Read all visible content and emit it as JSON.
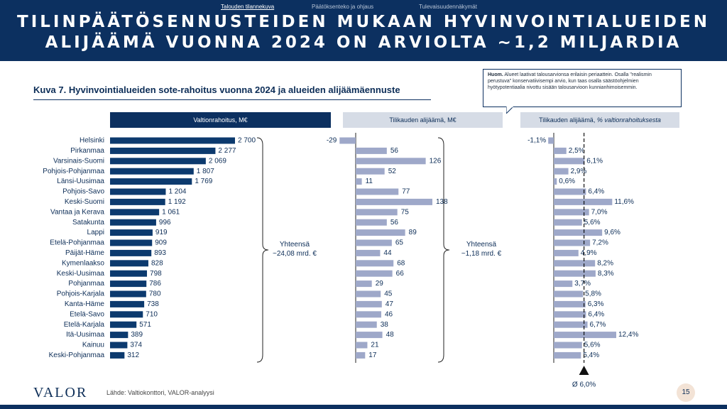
{
  "nav": {
    "items": [
      {
        "label": "Talouden tilannekuva",
        "active": true
      },
      {
        "label": "Päätöksenteko ja ohjaus",
        "active": false
      },
      {
        "label": "Tulevaisuudennäkymät",
        "active": false
      }
    ]
  },
  "header": {
    "title_line1": "TILINPÄÄTÖSENNUSTEIDEN MUKAAN HYVINVOINTIALUEIDEN",
    "title_line2": "ALIJÄÄMÄ VUONNA 2024 ON ARVIOLTA ~1,2 MILJARDIA"
  },
  "figure": {
    "title": "Kuva 7. Hyvinvointialueiden sote-rahoitus vuonna 2024 ja alueiden alijäämäennuste"
  },
  "note": {
    "bold": "Huom.",
    "text": " Alueet laativat talousarvionsa erilaisin periaattein. Osalla \"realismin perustuva\" konservatiivisempi arvio, kun taas osalla säästöohjelmien hyötypotentiaalia nivottu sisään talousarvioon kunnianhimoisemmin."
  },
  "colors": {
    "navy": "#0c3060",
    "bar_dark": "#0c3a6e",
    "bar_light": "#9ea8c9",
    "header_light": "#d6dce6"
  },
  "chart_data": {
    "type": "bar",
    "orientation": "horizontal",
    "categories": [
      "Helsinki",
      "Pirkanmaa",
      "Varsinais-Suomi",
      "Pohjois-Pohjanmaa",
      "Länsi-Uusimaa",
      "Pohjois-Savo",
      "Keski-Suomi",
      "Vantaa ja Kerava",
      "Satakunta",
      "Lappi",
      "Etelä-Pohjanmaa",
      "Päijät-Häme",
      "Kymenlaakso",
      "Keski-Uusimaa",
      "Pohjanmaa",
      "Pohjois-Karjala",
      "Kanta-Häme",
      "Etelä-Savo",
      "Etelä-Karjala",
      "Itä-Uusimaa",
      "Kainuu",
      "Keski-Pohjanmaa"
    ],
    "series": [
      {
        "name": "Valtionrahoitus, M€",
        "values": [
          2700,
          2277,
          2069,
          1807,
          1769,
          1204,
          1192,
          1061,
          996,
          919,
          909,
          893,
          828,
          798,
          786,
          780,
          738,
          710,
          571,
          389,
          374,
          312
        ],
        "labels": [
          "2 700",
          "2 277",
          "2 069",
          "1 807",
          "1 769",
          "1 204",
          "1 192",
          "1 061",
          "996",
          "919",
          "909",
          "893",
          "828",
          "798",
          "786",
          "780",
          "738",
          "710",
          "571",
          "389",
          "374",
          "312"
        ],
        "total": "Yhteensä\n~24,08 mrd. €"
      },
      {
        "name": "Tilikauden alijäämä, M€",
        "values": [
          -29,
          56,
          126,
          52,
          11,
          77,
          138,
          75,
          56,
          89,
          65,
          44,
          68,
          66,
          29,
          45,
          47,
          46,
          38,
          48,
          21,
          17
        ],
        "labels": [
          "-29",
          "56",
          "126",
          "52",
          "11",
          "77",
          "138",
          "75",
          "56",
          "89",
          "65",
          "44",
          "68",
          "66",
          "29",
          "45",
          "47",
          "46",
          "38",
          "48",
          "21",
          "17"
        ],
        "total": "Yhteensä\n~1,18 mrd. €"
      },
      {
        "name": "Tilikauden alijäämä, % valtionrahoituksesta",
        "name_plain": "Tilikauden alijäämä, ",
        "name_italic": "% valtionrahoituksesta",
        "values": [
          -1.1,
          2.5,
          6.1,
          2.9,
          0.6,
          6.4,
          11.6,
          7.0,
          5.6,
          9.6,
          7.2,
          4.9,
          8.2,
          8.3,
          3.7,
          5.8,
          6.3,
          6.4,
          6.7,
          12.4,
          5.6,
          5.4
        ],
        "labels": [
          "-1,1%",
          "2,5%",
          "6,1%",
          "2,9%",
          "0,6%",
          "6,4%",
          "11,6%",
          "7,0%",
          "5,6%",
          "9,6%",
          "7,2%",
          "4,9%",
          "8,2%",
          "8,3%",
          "3,7%",
          "5,8%",
          "6,3%",
          "6,4%",
          "6,7%",
          "12,4%",
          "5,6%",
          "5,4%"
        ],
        "average": 6.0,
        "average_label": "Ø 6,0%"
      }
    ]
  },
  "footer": {
    "logo": "VALOR",
    "source": "Lähde: Valtiokonttori, VALOR-analyysi",
    "page": "15"
  }
}
